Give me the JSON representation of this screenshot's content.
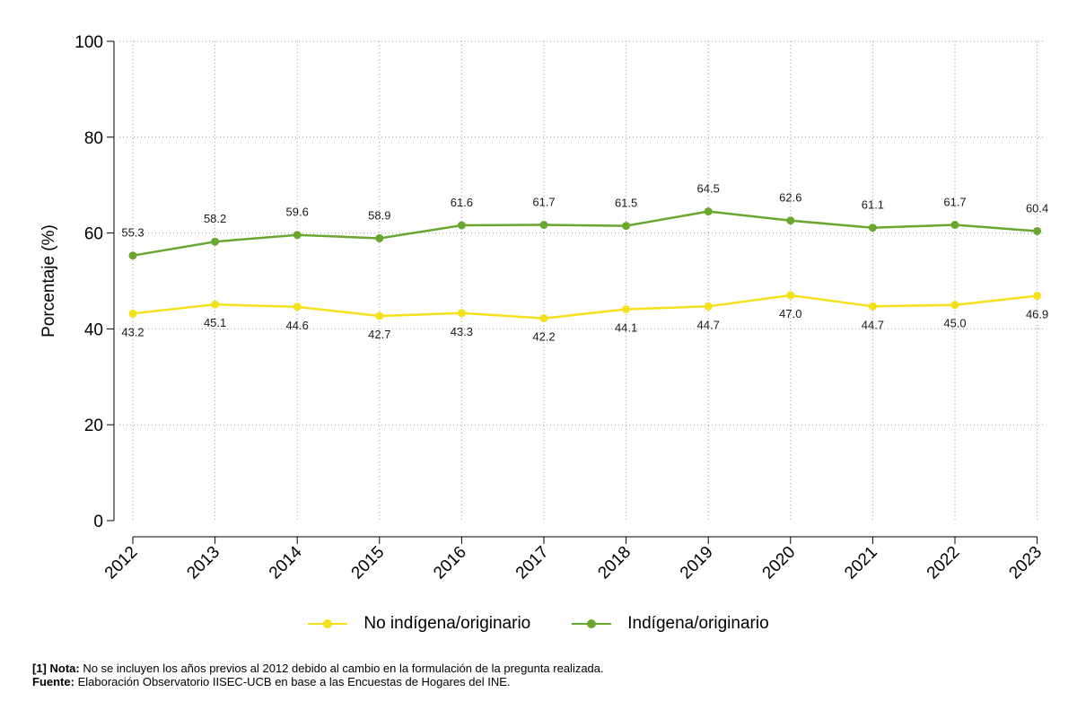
{
  "chart_data": {
    "type": "line",
    "title": "",
    "xlabel": "",
    "ylabel": "Porcentaje (%)",
    "ylim": [
      0,
      100
    ],
    "yticks": [
      0,
      20,
      40,
      60,
      80,
      100
    ],
    "grid": true,
    "legend_position": "bottom",
    "categories": [
      "2012",
      "2013",
      "2014",
      "2015",
      "2016",
      "2017",
      "2018",
      "2019",
      "2020",
      "2021",
      "2022",
      "2023"
    ],
    "series": [
      {
        "name": "No indígena/originario",
        "color": "#f5e11b",
        "values": [
          43.2,
          45.1,
          44.6,
          42.7,
          43.3,
          42.2,
          44.1,
          44.7,
          47.0,
          44.7,
          45.0,
          46.9
        ],
        "labels": [
          "43.2",
          "45.1",
          "44.6",
          "42.7",
          "43.3",
          "42.2",
          "44.1",
          "44.7",
          "47.0",
          "44.7",
          "45.0",
          "46.9"
        ],
        "label_position": "below"
      },
      {
        "name": "Indígena/originario",
        "color": "#6aa72f",
        "values": [
          55.3,
          58.2,
          59.6,
          58.9,
          61.6,
          61.7,
          61.5,
          64.5,
          62.6,
          61.1,
          61.7,
          60.4
        ],
        "labels": [
          "55.3",
          "58.2",
          "59.6",
          "58.9",
          "61.6",
          "61.7",
          "61.5",
          "64.5",
          "62.6",
          "61.1",
          "61.7",
          "60.4"
        ],
        "label_position": "above"
      }
    ]
  },
  "notes": {
    "nota_prefix": "[1] Nota:",
    "nota_text": " No se incluyen los años previos al 2012 debido al cambio en la formulación de la pregunta realizada.",
    "fuente_prefix": "Fuente:",
    "fuente_text": " Elaboración Observatorio IISEC-UCB en base a las Encuestas de Hogares del INE."
  }
}
